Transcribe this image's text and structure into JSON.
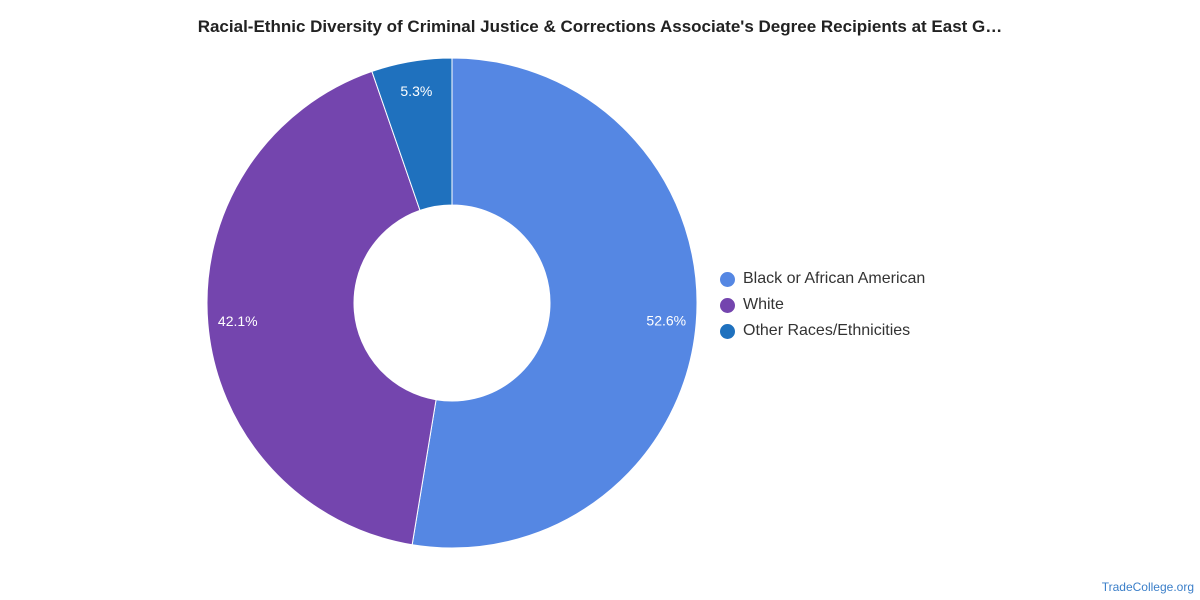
{
  "chart_data": {
    "type": "pie",
    "title": "Racial-Ethnic Diversity of Criminal Justice & Corrections Associate's Degree Recipients at East G…",
    "donut": true,
    "legend_position": "right",
    "categories": [
      "Black or African American",
      "White",
      "Other Races/Ethnicities"
    ],
    "values": [
      52.6,
      42.1,
      5.3
    ],
    "value_labels": [
      "52.6%",
      "42.1%",
      "5.3%"
    ],
    "colors": [
      "#5587E3",
      "#7445AE",
      "#1F71BE"
    ]
  },
  "watermark": "TradeCollege.org"
}
